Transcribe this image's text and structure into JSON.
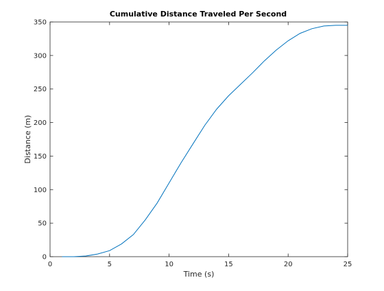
{
  "chart_data": {
    "type": "line",
    "title": "Cumulative Distance Traveled Per Second",
    "xlabel": "Time (s)",
    "ylabel": "Distance (m)",
    "xlim": [
      0,
      25
    ],
    "ylim": [
      0,
      350
    ],
    "xticks": [
      0,
      5,
      10,
      15,
      20,
      25
    ],
    "yticks": [
      0,
      50,
      100,
      150,
      200,
      250,
      300,
      350
    ],
    "grid": false,
    "line_color": "#0072BD",
    "series": [
      {
        "x": [
          1,
          2,
          3,
          4,
          5,
          6,
          7,
          8,
          9,
          10,
          11,
          12,
          13,
          14,
          15,
          16,
          17,
          18,
          19,
          20,
          21,
          22,
          23,
          24,
          25
        ],
        "values": [
          0,
          0,
          1,
          4,
          9,
          19,
          33,
          55,
          80,
          110,
          140,
          168,
          196,
          220,
          240,
          257,
          274,
          292,
          308,
          322,
          333,
          340,
          344,
          345,
          345
        ]
      }
    ]
  }
}
